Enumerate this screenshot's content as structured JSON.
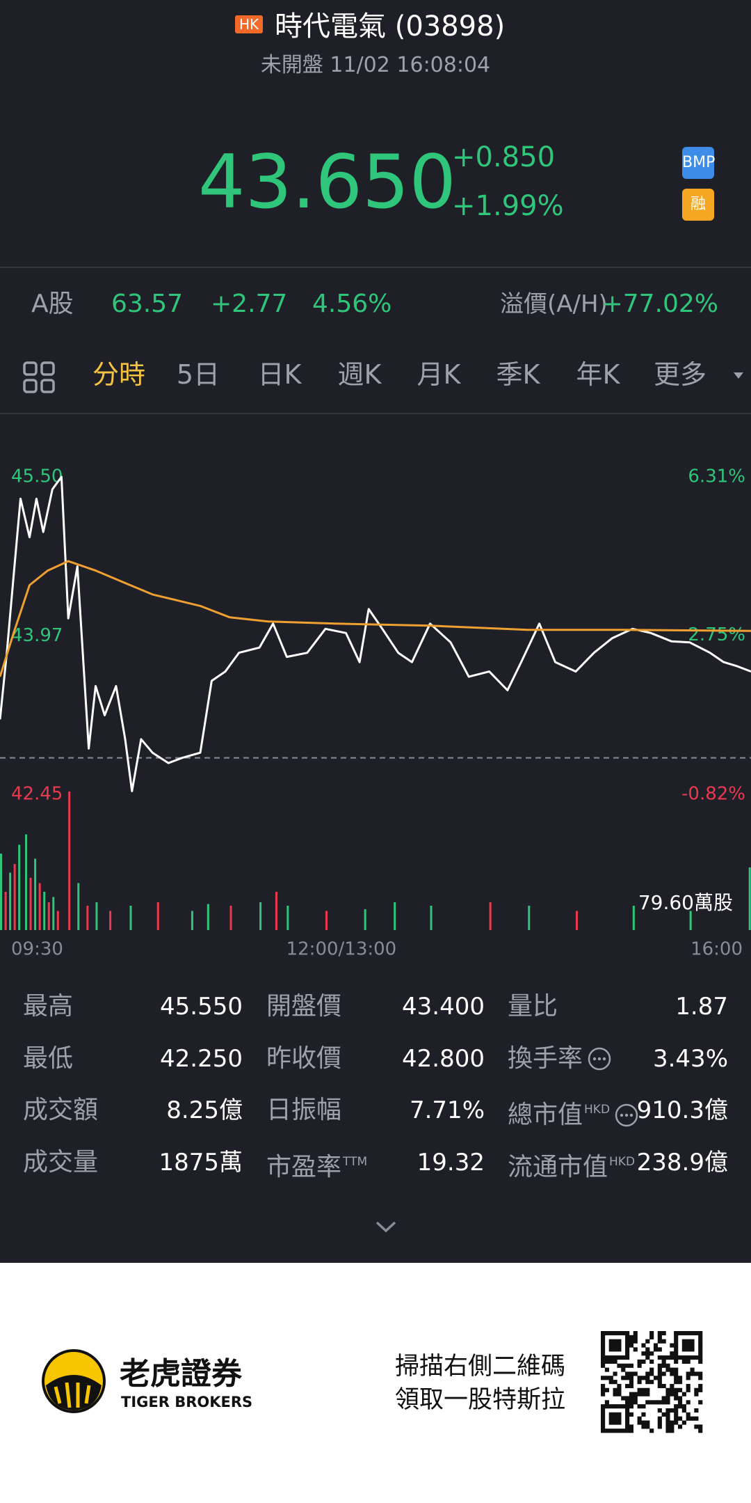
{
  "header": {
    "market_badge": "HK",
    "name": "時代電氣 (03898)",
    "status": "未開盤 11/02 16:08:04"
  },
  "quote": {
    "price": "43.650",
    "change": "+0.850",
    "change_percent": "+1.99%",
    "badges": [
      "BMP",
      "融"
    ]
  },
  "a_share": {
    "label": "A股",
    "price": "63.57",
    "change": "+2.77",
    "change_percent": "4.56%",
    "premium_label": "溢價(A/H)",
    "premium": "+77.02%"
  },
  "tabs": {
    "items": [
      "分時",
      "5日",
      "日K",
      "週K",
      "月K",
      "季K",
      "年K",
      "更多"
    ],
    "active": 0
  },
  "chart_data": {
    "type": "line",
    "x": [
      0,
      3,
      6,
      9,
      13,
      16,
      19,
      23,
      27,
      30,
      34,
      39,
      42,
      46,
      51,
      55,
      58,
      62,
      67,
      74,
      80,
      88,
      93,
      99,
      105,
      114,
      120,
      126,
      135,
      143,
      152,
      158,
      162,
      168,
      175,
      181,
      189,
      198,
      206,
      215,
      223,
      229,
      237,
      244,
      253,
      261,
      269,
      278,
      286,
      295,
      303,
      312,
      318,
      324,
      330
    ],
    "series": [
      {
        "color": "#ffffff",
        "values": [
          43.17,
          43.81,
          44.55,
          45.29,
          44.92,
          45.29,
          44.97,
          45.38,
          45.5,
          44.14,
          44.64,
          42.89,
          43.49,
          43.21,
          43.49,
          42.98,
          42.48,
          42.98,
          42.85,
          42.75,
          42.8,
          42.85,
          43.54,
          43.63,
          43.81,
          43.86,
          44.09,
          43.77,
          43.81,
          44.04,
          44.0,
          43.72,
          44.23,
          44.04,
          43.81,
          43.72,
          44.09,
          43.91,
          43.58,
          43.63,
          43.45,
          43.72,
          44.09,
          43.72,
          43.63,
          43.81,
          43.95,
          44.04,
          44.0,
          43.92,
          43.91,
          43.81,
          43.72,
          43.68,
          43.63
        ]
      },
      {
        "color": "#f0a030",
        "x": [
          0,
          6,
          13,
          21,
          30,
          42,
          55,
          67,
          88,
          101,
          118,
          147,
          189,
          232,
          274,
          330
        ],
        "values": [
          43.58,
          44.0,
          44.46,
          44.6,
          44.69,
          44.6,
          44.48,
          44.37,
          44.26,
          44.15,
          44.11,
          44.09,
          44.07,
          44.03,
          44.03,
          44.02
        ]
      }
    ],
    "xlim": [
      0,
      330
    ],
    "xticks": [
      {
        "value": 0,
        "label": "09:30"
      },
      {
        "value": 150,
        "label": "12:00/13:00"
      },
      {
        "value": 330,
        "label": "16:00"
      }
    ],
    "ylim": [
      42.45,
      45.5
    ],
    "yticks": [
      {
        "value": 45.5,
        "label": "45.50"
      },
      43.97,
      {
        "value": 42.45,
        "label": "42.45"
      }
    ],
    "y2lim": [
      -0.82,
      6.31
    ],
    "y2ticks": [
      {
        "value": 6.31,
        "label": "6.31%"
      },
      {
        "value": 2.75,
        "label": "2.75%"
      },
      {
        "value": -0.82,
        "label": "-0.82%"
      }
    ],
    "reference_line": 42.8,
    "up_color": "#2fc57a",
    "down_color": "#e8394f",
    "volume": {
      "label": "79.60萬股",
      "ylim": [
        0,
        79.6
      ],
      "x": [
        0,
        2,
        4,
        6,
        8,
        11,
        13,
        15,
        17,
        19,
        21,
        23,
        25,
        30,
        34,
        38,
        42,
        48,
        57,
        69,
        84,
        91,
        101,
        114,
        121,
        126,
        143,
        160,
        173,
        189,
        215,
        232,
        253,
        278,
        303,
        329
      ],
      "values": [
        43.9,
        22,
        33,
        38,
        49,
        55,
        30,
        41,
        27,
        22,
        16,
        19,
        11,
        79.6,
        27,
        14,
        16,
        11,
        14,
        16,
        11,
        15,
        14,
        16,
        22,
        14,
        11,
        12,
        16,
        14,
        16,
        14,
        11,
        14,
        11,
        36
      ],
      "colors": [
        "#2fc57a",
        "#e8394f",
        "#2fc57a",
        "#e8394f",
        "#2fc57a",
        "#2fc57a",
        "#e8394f",
        "#2fc57a",
        "#e8394f",
        "#2fc57a",
        "#e8394f",
        "#2fc57a",
        "#e8394f",
        "#e8394f",
        "#2fc57a",
        "#e8394f",
        "#2fc57a",
        "#e8394f",
        "#2fc57a",
        "#e8394f",
        "#2fc57a",
        "#2fc57a",
        "#e8394f",
        "#2fc57a",
        "#e8394f",
        "#2fc57a",
        "#e8394f",
        "#2fc57a",
        "#2fc57a",
        "#2fc57a",
        "#e8394f",
        "#2fc57a",
        "#e8394f",
        "#2fc57a",
        "#2fc57a",
        "#2fc57a"
      ]
    }
  },
  "stats": [
    {
      "label": "最高",
      "value": "45.550"
    },
    {
      "label": "開盤價",
      "value": "43.400"
    },
    {
      "label": "量比",
      "value": "1.87"
    },
    {
      "label": "最低",
      "value": "42.250"
    },
    {
      "label": "昨收價",
      "value": "42.800"
    },
    {
      "label": "換手率",
      "value": "3.43%",
      "info": true
    },
    {
      "label": "成交額",
      "value": "8.25億"
    },
    {
      "label": "日振幅",
      "value": "7.71%"
    },
    {
      "label": "總市值",
      "sup": "HKD",
      "value": "910.3億",
      "info": true
    },
    {
      "label": "成交量",
      "value": "1875萬"
    },
    {
      "label": "市盈率",
      "sup": "TTM",
      "value": "19.32"
    },
    {
      "label": "流通市值",
      "sup": "HKD",
      "value": "238.9億"
    }
  ],
  "footer": {
    "brand": "老虎證券",
    "brand_en": "TIGER BROKERS",
    "promo": [
      "掃描右側二維碼",
      "領取一股特斯拉"
    ]
  }
}
